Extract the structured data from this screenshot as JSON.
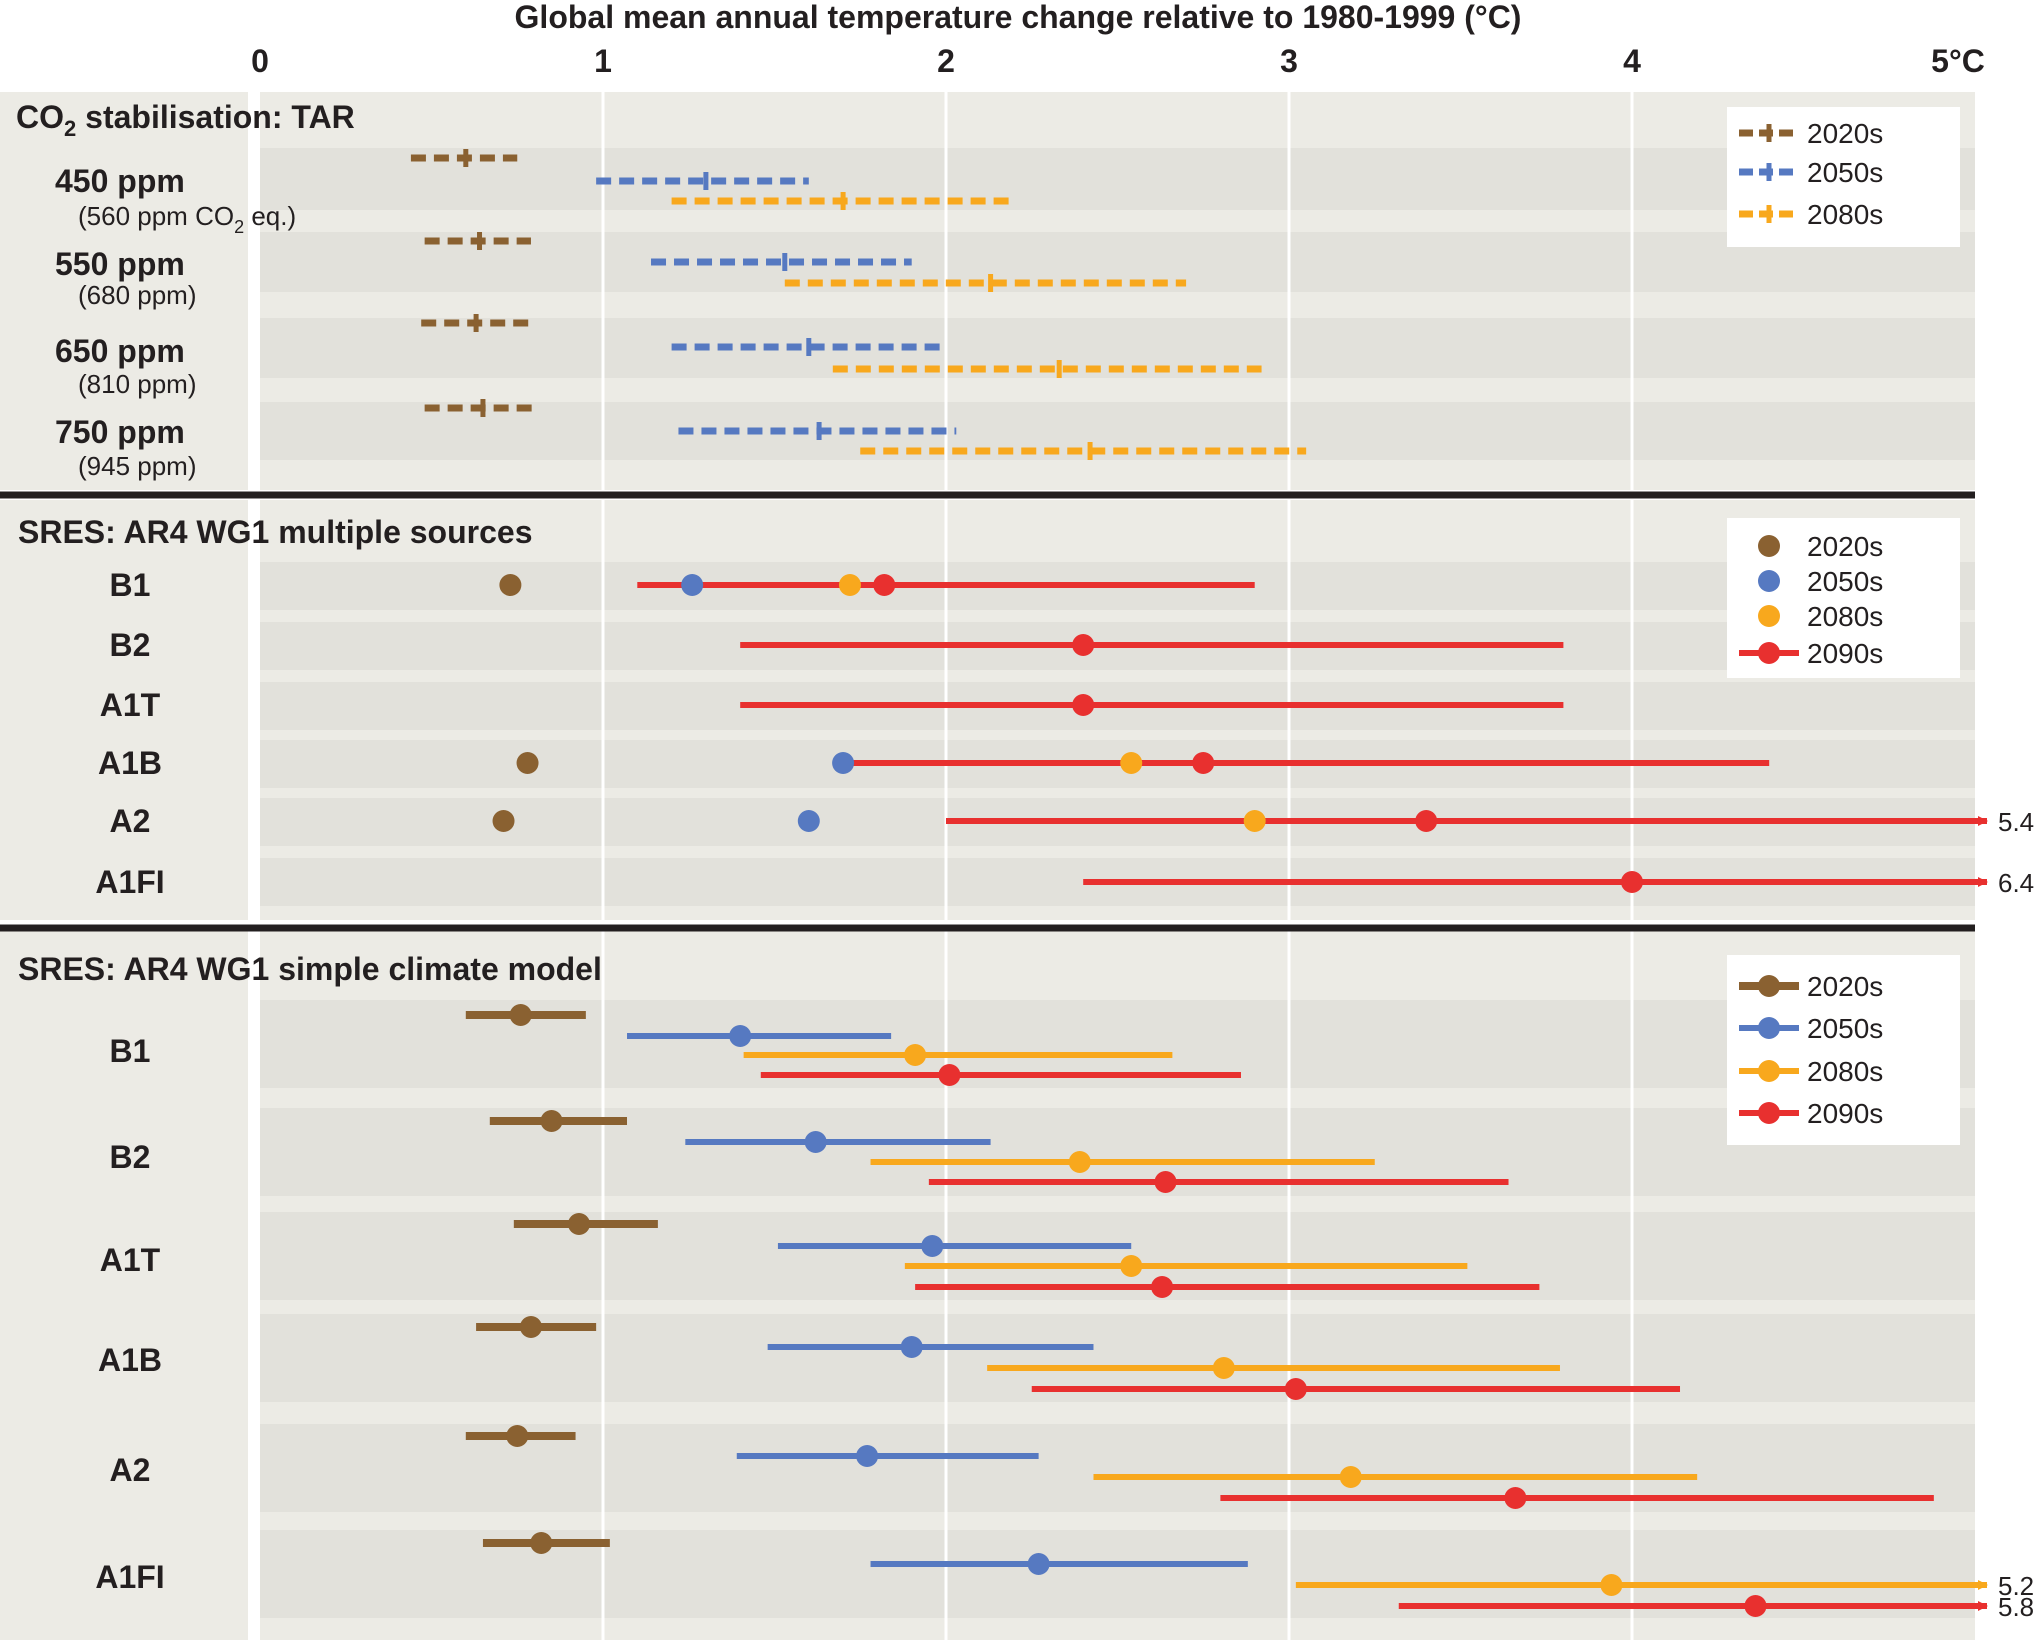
{
  "colors": {
    "panel_bg": "#ecebe5",
    "band": "#e2e1db",
    "grid": "#ffffff",
    "divider": "#231f20",
    "text": "#231f20",
    "2020s": "#8a6131",
    "2050s": "#5679c1",
    "2080s": "#f8a81d",
    "2090s": "#e8302f"
  },
  "chart_data": {
    "type": "range-dot",
    "title": "Global mean annual temperature change relative to 1980-1999 (°C)",
    "xlim": [
      0,
      5
    ],
    "x_ticks": [
      {
        "value": 0,
        "label": "0"
      },
      {
        "value": 1,
        "label": "1"
      },
      {
        "value": 2,
        "label": "2"
      },
      {
        "value": 3,
        "label": "3"
      },
      {
        "value": 4,
        "label": "4"
      },
      {
        "value": 5,
        "label": "5°C"
      }
    ],
    "panels": [
      {
        "title_main": "CO",
        "title_sub": "2",
        "title_rest": " stabilisation: TAR",
        "legend": [
          "2020s",
          "2050s",
          "2080s"
        ],
        "rows": [
          {
            "label": "450 ppm",
            "sublabel_main": "(560 ppm CO",
            "sublabel_sub": "2",
            "sublabel_rest": " eq.)",
            "series": [
              {
                "period": "2020s",
                "low": 0.44,
                "central": 0.6,
                "high": 0.75
              },
              {
                "period": "2050s",
                "low": 0.98,
                "central": 1.3,
                "high": 1.6
              },
              {
                "period": "2080s",
                "low": 1.2,
                "central": 1.7,
                "high": 2.2
              }
            ]
          },
          {
            "label": "550 ppm",
            "sublabel_main": "(680 ppm)",
            "sublabel_sub": "",
            "sublabel_rest": "",
            "series": [
              {
                "period": "2020s",
                "low": 0.48,
                "central": 0.64,
                "high": 0.79
              },
              {
                "period": "2050s",
                "low": 1.14,
                "central": 1.53,
                "high": 1.9
              },
              {
                "period": "2080s",
                "low": 1.53,
                "central": 2.13,
                "high": 2.7
              }
            ]
          },
          {
            "label": "650 ppm",
            "sublabel_main": "(810 ppm)",
            "sublabel_sub": "",
            "sublabel_rest": "",
            "series": [
              {
                "period": "2020s",
                "low": 0.47,
                "central": 0.63,
                "high": 0.8
              },
              {
                "period": "2050s",
                "low": 1.2,
                "central": 1.6,
                "high": 2.0
              },
              {
                "period": "2080s",
                "low": 1.67,
                "central": 2.33,
                "high": 2.92
              }
            ]
          },
          {
            "label": "750 ppm",
            "sublabel_main": "(945 ppm)",
            "sublabel_sub": "",
            "sublabel_rest": "",
            "series": [
              {
                "period": "2020s",
                "low": 0.48,
                "central": 0.65,
                "high": 0.8
              },
              {
                "period": "2050s",
                "low": 1.22,
                "central": 1.63,
                "high": 2.03
              },
              {
                "period": "2080s",
                "low": 1.75,
                "central": 2.42,
                "high": 3.05
              }
            ]
          }
        ]
      },
      {
        "title_main": "SRES: AR4 WG1 multiple sources",
        "title_sub": "",
        "title_rest": "",
        "legend": [
          "2020s",
          "2050s",
          "2080s",
          "2090s"
        ],
        "rows": [
          {
            "label": "B1",
            "dots": [
              {
                "period": "2020s",
                "value": 0.73
              },
              {
                "period": "2050s",
                "value": 1.26
              },
              {
                "period": "2080s",
                "value": 1.72
              },
              {
                "period": "2090s",
                "value": 1.82
              }
            ],
            "range": {
              "low": 1.1,
              "high": 2.9,
              "overflow_label": ""
            }
          },
          {
            "label": "B2",
            "dots": [
              {
                "period": "2090s",
                "value": 2.4
              }
            ],
            "range": {
              "low": 1.4,
              "high": 3.8,
              "overflow_label": ""
            }
          },
          {
            "label": "A1T",
            "dots": [
              {
                "period": "2090s",
                "value": 2.4
              }
            ],
            "range": {
              "low": 1.4,
              "high": 3.8,
              "overflow_label": ""
            }
          },
          {
            "label": "A1B",
            "dots": [
              {
                "period": "2020s",
                "value": 0.78
              },
              {
                "period": "2050s",
                "value": 1.7
              },
              {
                "period": "2080s",
                "value": 2.54
              },
              {
                "period": "2090s",
                "value": 2.75
              }
            ],
            "range": {
              "low": 1.7,
              "high": 4.4,
              "overflow_label": ""
            }
          },
          {
            "label": "A2",
            "dots": [
              {
                "period": "2020s",
                "value": 0.71
              },
              {
                "period": "2050s",
                "value": 1.6
              },
              {
                "period": "2080s",
                "value": 2.9
              },
              {
                "period": "2090s",
                "value": 3.4
              }
            ],
            "range": {
              "low": 2.0,
              "high": 5.4,
              "overflow_label": "5.4"
            }
          },
          {
            "label": "A1FI",
            "dots": [
              {
                "period": "2090s",
                "value": 4.0
              }
            ],
            "range": {
              "low": 2.4,
              "high": 6.4,
              "overflow_label": "6.4"
            }
          }
        ]
      },
      {
        "title_main": "SRES: AR4 WG1 simple climate model",
        "title_sub": "",
        "title_rest": "",
        "legend": [
          "2020s",
          "2050s",
          "2080s",
          "2090s"
        ],
        "rows": [
          {
            "label": "B1",
            "series": [
              {
                "period": "2020s",
                "low": 0.6,
                "central": 0.76,
                "high": 0.95,
                "overflow_label": ""
              },
              {
                "period": "2050s",
                "low": 1.07,
                "central": 1.4,
                "high": 1.84,
                "overflow_label": ""
              },
              {
                "period": "2080s",
                "low": 1.41,
                "central": 1.91,
                "high": 2.66,
                "overflow_label": ""
              },
              {
                "period": "2090s",
                "low": 1.46,
                "central": 2.01,
                "high": 2.86,
                "overflow_label": ""
              }
            ]
          },
          {
            "label": "B2",
            "series": [
              {
                "period": "2020s",
                "low": 0.67,
                "central": 0.85,
                "high": 1.07,
                "overflow_label": ""
              },
              {
                "period": "2050s",
                "low": 1.24,
                "central": 1.62,
                "high": 2.13,
                "overflow_label": ""
              },
              {
                "period": "2080s",
                "low": 1.78,
                "central": 2.39,
                "high": 3.25,
                "overflow_label": ""
              },
              {
                "period": "2090s",
                "low": 1.95,
                "central": 2.64,
                "high": 3.64,
                "overflow_label": ""
              }
            ]
          },
          {
            "label": "A1T",
            "series": [
              {
                "period": "2020s",
                "low": 0.74,
                "central": 0.93,
                "high": 1.16,
                "overflow_label": ""
              },
              {
                "period": "2050s",
                "low": 1.51,
                "central": 1.96,
                "high": 2.54,
                "overflow_label": ""
              },
              {
                "period": "2080s",
                "low": 1.88,
                "central": 2.54,
                "high": 3.52,
                "overflow_label": ""
              },
              {
                "period": "2090s",
                "low": 1.91,
                "central": 2.63,
                "high": 3.73,
                "overflow_label": ""
              }
            ]
          },
          {
            "label": "A1B",
            "series": [
              {
                "period": "2020s",
                "low": 0.63,
                "central": 0.79,
                "high": 0.98,
                "overflow_label": ""
              },
              {
                "period": "2050s",
                "low": 1.48,
                "central": 1.9,
                "high": 2.43,
                "overflow_label": ""
              },
              {
                "period": "2080s",
                "low": 2.12,
                "central": 2.81,
                "high": 3.79,
                "overflow_label": ""
              },
              {
                "period": "2090s",
                "low": 2.25,
                "central": 3.02,
                "high": 4.14,
                "overflow_label": ""
              }
            ]
          },
          {
            "label": "A2",
            "series": [
              {
                "period": "2020s",
                "low": 0.6,
                "central": 0.75,
                "high": 0.92,
                "overflow_label": ""
              },
              {
                "period": "2050s",
                "low": 1.39,
                "central": 1.77,
                "high": 2.27,
                "overflow_label": ""
              },
              {
                "period": "2080s",
                "low": 2.43,
                "central": 3.18,
                "high": 4.19,
                "overflow_label": ""
              },
              {
                "period": "2090s",
                "low": 2.8,
                "central": 3.66,
                "high": 4.88,
                "overflow_label": ""
              }
            ]
          },
          {
            "label": "A1FI",
            "series": [
              {
                "period": "2020s",
                "low": 0.65,
                "central": 0.82,
                "high": 1.02,
                "overflow_label": ""
              },
              {
                "period": "2050s",
                "low": 1.78,
                "central": 2.27,
                "high": 2.88,
                "overflow_label": ""
              },
              {
                "period": "2080s",
                "low": 3.02,
                "central": 3.94,
                "high": 5.2,
                "overflow_label": "5.2"
              },
              {
                "period": "2090s",
                "low": 3.32,
                "central": 4.36,
                "high": 5.8,
                "overflow_label": "5.8"
              }
            ]
          }
        ]
      }
    ]
  }
}
